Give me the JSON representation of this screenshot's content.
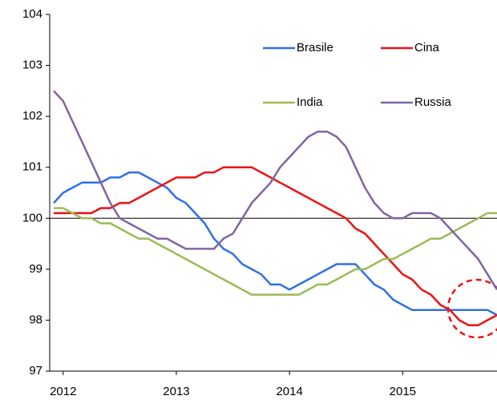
{
  "chart_data": {
    "type": "line",
    "categories": [
      null,
      "2012",
      null,
      null,
      null,
      null,
      null,
      null,
      null,
      null,
      null,
      null,
      null,
      "2013",
      null,
      null,
      null,
      null,
      null,
      null,
      null,
      null,
      null,
      null,
      null,
      "2014",
      null,
      null,
      null,
      null,
      null,
      null,
      null,
      null,
      null,
      null,
      null,
      "2015",
      null,
      null,
      null,
      null,
      null,
      null,
      null,
      null,
      null,
      null
    ],
    "series": [
      {
        "name": "Brasile",
        "color": "#2f6fe8",
        "values": [
          100.3,
          100.5,
          100.6,
          100.7,
          100.7,
          100.7,
          100.8,
          100.8,
          100.9,
          100.9,
          100.8,
          100.7,
          100.6,
          100.4,
          100.3,
          100.1,
          99.9,
          99.6,
          99.4,
          99.3,
          99.1,
          99.0,
          98.9,
          98.7,
          98.7,
          98.6,
          98.7,
          98.8,
          98.9,
          99.0,
          99.1,
          99.1,
          99.1,
          98.9,
          98.7,
          98.6,
          98.4,
          98.3,
          98.2,
          98.2,
          98.2,
          98.2,
          98.2,
          98.2,
          98.2,
          98.2,
          98.2,
          98.1
        ]
      },
      {
        "name": "Cina",
        "color": "#ee1111",
        "values": [
          100.1,
          100.1,
          100.1,
          100.1,
          100.1,
          100.2,
          100.2,
          100.3,
          100.3,
          100.4,
          100.5,
          100.6,
          100.7,
          100.8,
          100.8,
          100.8,
          100.9,
          100.9,
          101.0,
          101.0,
          101.0,
          101.0,
          100.9,
          100.8,
          100.7,
          100.6,
          100.5,
          100.4,
          100.3,
          100.2,
          100.1,
          100.0,
          99.8,
          99.7,
          99.5,
          99.3,
          99.1,
          98.9,
          98.8,
          98.6,
          98.5,
          98.3,
          98.2,
          98.0,
          97.9,
          97.9,
          98.0,
          98.1
        ]
      },
      {
        "name": "India",
        "color": "#99bb55",
        "values": [
          100.2,
          100.2,
          100.1,
          100.0,
          100.0,
          99.9,
          99.9,
          99.8,
          99.7,
          99.6,
          99.6,
          99.5,
          99.4,
          99.3,
          99.2,
          99.1,
          99.0,
          98.9,
          98.8,
          98.7,
          98.6,
          98.5,
          98.5,
          98.5,
          98.5,
          98.5,
          98.5,
          98.6,
          98.7,
          98.7,
          98.8,
          98.9,
          99.0,
          99.0,
          99.1,
          99.2,
          99.2,
          99.3,
          99.4,
          99.5,
          99.6,
          99.6,
          99.7,
          99.8,
          99.9,
          100.0,
          100.1,
          100.1
        ]
      },
      {
        "name": "Russia",
        "color": "#8064a2",
        "values": [
          102.5,
          102.3,
          101.9,
          101.5,
          101.1,
          100.7,
          100.3,
          100.0,
          99.9,
          99.8,
          99.7,
          99.6,
          99.6,
          99.5,
          99.4,
          99.4,
          99.4,
          99.4,
          99.6,
          99.7,
          100.0,
          100.3,
          100.5,
          100.7,
          101.0,
          101.2,
          101.4,
          101.6,
          101.7,
          101.7,
          101.6,
          101.4,
          101.0,
          100.6,
          100.3,
          100.1,
          100.0,
          100.0,
          100.1,
          100.1,
          100.1,
          100.0,
          99.8,
          99.6,
          99.4,
          99.2,
          98.9,
          98.6
        ]
      }
    ],
    "ylim": [
      97,
      104
    ],
    "yticks": [
      97,
      98,
      99,
      100,
      101,
      102,
      103,
      104
    ],
    "hline": 100
  }
}
